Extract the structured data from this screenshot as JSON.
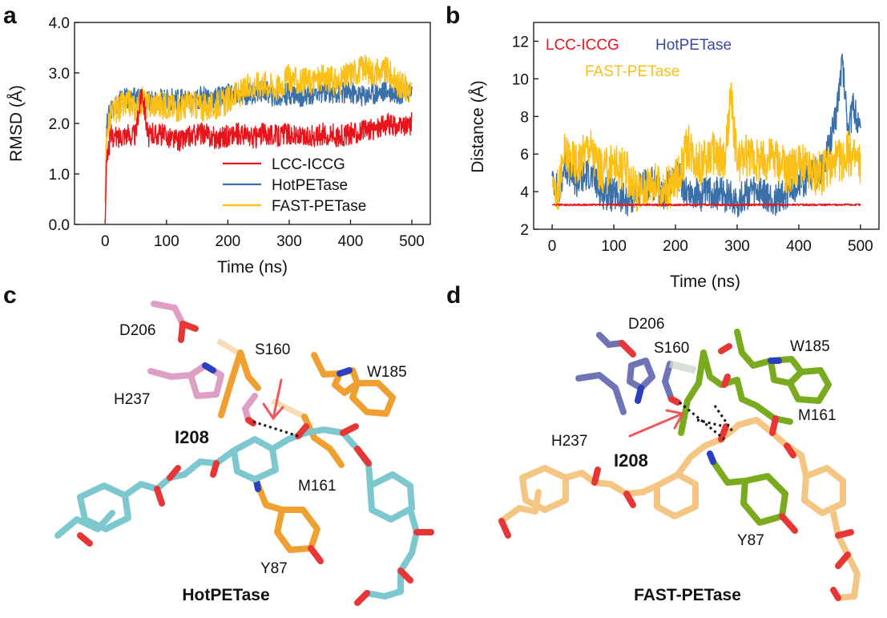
{
  "panels": {
    "a": "a",
    "b": "b",
    "c": "c",
    "d": "d"
  },
  "colors": {
    "lcc_iccg": "#e8141b",
    "hotpetase": "#3a6fa8",
    "fast_petase": "#fbc018",
    "ligand_c": "#f5c683",
    "ligand_hot": "#7dc7cf",
    "hot_residue": "#f0a030",
    "hot_catalytic": "#de9fc5",
    "fast_residue": "#7aab1e",
    "fast_catalytic": "#6f74b4",
    "oxygen": "#e83636",
    "nitrogen": "#2a3fc2",
    "arrow": "#f0585a"
  },
  "chart_data": [
    {
      "type": "line",
      "panel": "a",
      "xlabel": "Time (ns)",
      "ylabel": "RMSD  (Å)",
      "xlim": [
        -50,
        530
      ],
      "ylim": [
        0,
        4
      ],
      "xticks": [
        0,
        100,
        200,
        300,
        400,
        500
      ],
      "yticks": [
        "0.0",
        "1.0",
        "2.0",
        "3.0",
        "4.0"
      ],
      "legend_position": "lower-right",
      "series": [
        {
          "name": "LCC-ICCG",
          "color": "#e8141b",
          "x": [
            0,
            2,
            5,
            10,
            20,
            30,
            40,
            50,
            60,
            70,
            80,
            100,
            120,
            140,
            160,
            180,
            200,
            220,
            240,
            260,
            280,
            300,
            320,
            340,
            360,
            380,
            400,
            420,
            440,
            460,
            480,
            500
          ],
          "y": [
            0.0,
            1.2,
            1.5,
            1.75,
            1.7,
            1.8,
            1.75,
            1.8,
            2.7,
            1.75,
            1.8,
            1.75,
            1.65,
            1.75,
            1.8,
            1.7,
            1.75,
            1.8,
            1.7,
            1.8,
            1.75,
            1.8,
            1.7,
            1.75,
            1.8,
            1.75,
            1.8,
            1.85,
            1.9,
            2.0,
            1.9,
            2.0
          ]
        },
        {
          "name": "HotPETase",
          "color": "#3a6fa8",
          "x": [
            0,
            2,
            5,
            10,
            20,
            30,
            40,
            50,
            60,
            70,
            80,
            100,
            120,
            140,
            160,
            180,
            200,
            220,
            240,
            260,
            280,
            300,
            320,
            340,
            360,
            380,
            400,
            420,
            440,
            460,
            480,
            500
          ],
          "y": [
            0.5,
            1.9,
            2.1,
            2.3,
            2.4,
            2.5,
            2.45,
            2.5,
            2.55,
            2.4,
            2.5,
            2.45,
            2.5,
            2.4,
            2.55,
            2.5,
            2.6,
            2.55,
            2.6,
            2.65,
            2.5,
            2.6,
            2.55,
            2.6,
            2.65,
            2.6,
            2.6,
            2.55,
            2.6,
            2.65,
            2.6,
            2.65
          ]
        },
        {
          "name": "FAST-PETase",
          "color": "#fbc018",
          "x": [
            0,
            2,
            5,
            10,
            20,
            30,
            40,
            50,
            60,
            70,
            80,
            100,
            120,
            140,
            160,
            180,
            200,
            220,
            240,
            260,
            280,
            300,
            320,
            340,
            360,
            380,
            400,
            420,
            440,
            460,
            480,
            500
          ],
          "y": [
            0.5,
            1.8,
            2.0,
            2.2,
            2.3,
            2.35,
            2.4,
            2.3,
            2.45,
            2.35,
            2.4,
            2.35,
            2.3,
            2.4,
            2.3,
            2.35,
            2.45,
            2.6,
            2.75,
            2.8,
            2.7,
            2.9,
            2.8,
            2.85,
            2.9,
            2.8,
            3.0,
            3.1,
            3.0,
            3.05,
            2.75,
            2.65
          ]
        }
      ]
    },
    {
      "type": "line",
      "panel": "b",
      "xlabel": "Time (ns)",
      "ylabel": "Distance  (Å)",
      "xlim": [
        -30,
        530
      ],
      "ylim": [
        2,
        13
      ],
      "xticks": [
        0,
        100,
        200,
        300,
        400,
        500
      ],
      "yticks": [
        2,
        4,
        6,
        8,
        10,
        12
      ],
      "legend_position": "top",
      "series": [
        {
          "name": "LCC-ICCG",
          "color": "#e8141b",
          "x": [
            0,
            50,
            100,
            150,
            200,
            250,
            300,
            350,
            400,
            450,
            500
          ],
          "y": [
            3.3,
            3.3,
            3.3,
            3.3,
            3.3,
            3.3,
            3.3,
            3.3,
            3.3,
            3.3,
            3.3
          ]
        },
        {
          "name": "HotPETase",
          "color": "#3a6fa8",
          "x": [
            0,
            10,
            20,
            40,
            60,
            80,
            100,
            120,
            140,
            160,
            180,
            200,
            220,
            240,
            260,
            280,
            300,
            320,
            340,
            360,
            380,
            400,
            420,
            440,
            450,
            460,
            470,
            480,
            490,
            500
          ],
          "y": [
            5.0,
            3.8,
            5.5,
            4.5,
            5.0,
            4.0,
            3.8,
            3.5,
            4.0,
            4.5,
            3.8,
            5.0,
            4.0,
            3.8,
            4.0,
            3.8,
            3.5,
            4.0,
            3.8,
            3.5,
            4.0,
            4.5,
            4.8,
            5.2,
            6.5,
            8.0,
            11.0,
            7.5,
            8.5,
            7.0
          ]
        },
        {
          "name": "FAST-PETase",
          "color": "#fbc018",
          "x": [
            0,
            10,
            20,
            40,
            60,
            80,
            100,
            120,
            140,
            160,
            180,
            200,
            220,
            240,
            260,
            280,
            290,
            300,
            320,
            340,
            360,
            380,
            400,
            420,
            440,
            460,
            480,
            500
          ],
          "y": [
            4.5,
            4.0,
            6.0,
            5.5,
            6.5,
            5.0,
            5.5,
            5.0,
            4.0,
            4.5,
            4.0,
            4.5,
            6.5,
            5.5,
            6.0,
            5.5,
            9.0,
            5.5,
            6.0,
            5.5,
            6.0,
            5.0,
            5.5,
            5.0,
            5.0,
            5.5,
            6.0,
            5.5
          ]
        }
      ]
    }
  ],
  "panel_c": {
    "caption": "HotPETase",
    "labels": {
      "d206": "D206",
      "s160": "S160",
      "w185": "W185",
      "h237": "H237",
      "i208": "I208",
      "m161": "M161",
      "y87": "Y87"
    }
  },
  "panel_d": {
    "caption": "FAST-PETase",
    "labels": {
      "d206": "D206",
      "s160": "S160",
      "w185": "W185",
      "m161": "M161",
      "h237": "H237",
      "i208": "I208",
      "y87": "Y87"
    }
  }
}
